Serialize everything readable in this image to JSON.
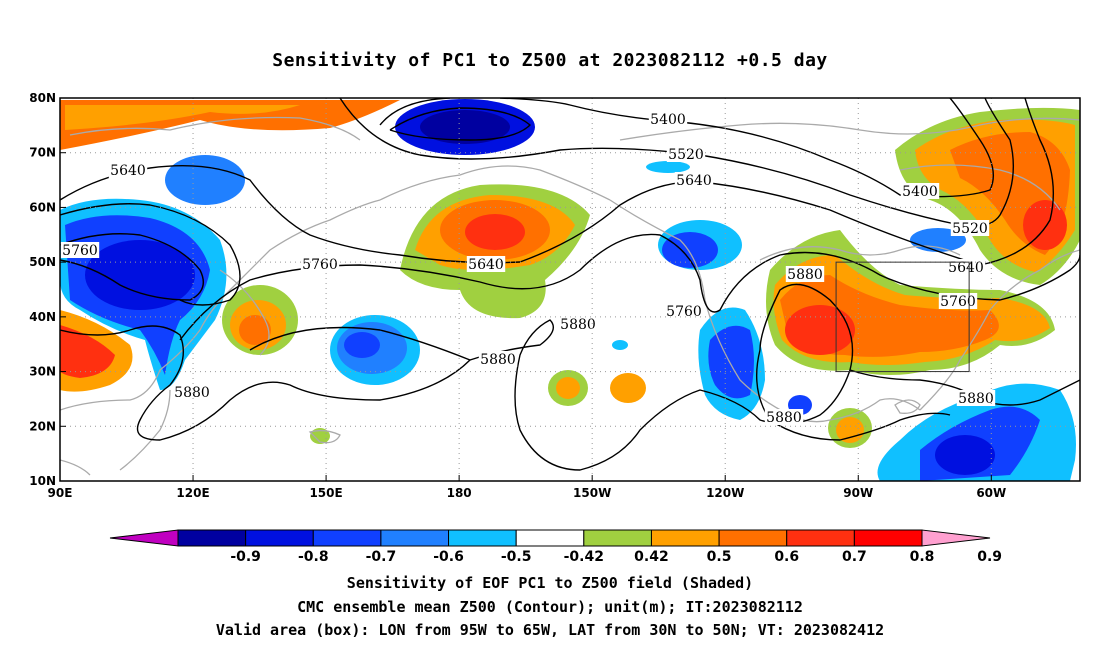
{
  "title": "Sensitivity of PC1 to Z500 at 2023082112 +0.5 day",
  "map": {
    "lat_labels": [
      "80N",
      "70N",
      "60N",
      "50N",
      "40N",
      "30N",
      "20N",
      "10N"
    ],
    "lon_labels": [
      "90E",
      "120E",
      "150E",
      "180",
      "150W",
      "120W",
      "90W",
      "60W"
    ],
    "lat_values": [
      80,
      70,
      60,
      50,
      40,
      30,
      20,
      10
    ],
    "lon_values": [
      90,
      120,
      150,
      180,
      210,
      240,
      270,
      300
    ],
    "lon_range": [
      90,
      320
    ],
    "lat_range": [
      10,
      80
    ],
    "grid": "dotted",
    "coastline_color": "#aaaaaa",
    "valid_box": {
      "lon": [
        265,
        295
      ],
      "lat": [
        30,
        50
      ]
    },
    "contours": [
      {
        "level": "5400",
        "labels": [
          "5400",
          "5400"
        ]
      },
      {
        "level": "5520",
        "labels": [
          "5520",
          "5520"
        ]
      },
      {
        "level": "5640",
        "labels": [
          "5640",
          "5640",
          "5640",
          "5640"
        ]
      },
      {
        "level": "5760",
        "labels": [
          "5760",
          "5760",
          "5760",
          "5760"
        ]
      },
      {
        "level": "5880",
        "labels": [
          "5880",
          "5880",
          "5880",
          "5880",
          "5880",
          "5880"
        ]
      }
    ]
  },
  "colorbar": {
    "labels": [
      "-0.9",
      "-0.8",
      "-0.7",
      "-0.6",
      "-0.5",
      "-0.42",
      "0.42",
      "0.5",
      "0.6",
      "0.7",
      "0.8",
      "0.9"
    ],
    "colors": [
      "#c000c0",
      "#0000a0",
      "#0010e0",
      "#1040ff",
      "#2080ff",
      "#10c0ff",
      "#ffffff",
      "#a0d040",
      "#ffa000",
      "#ff7000",
      "#ff3010",
      "#ff0000",
      "#ffa0d0"
    ]
  },
  "captions": [
    "Sensitivity of EOF PC1 to Z500 field (Shaded)",
    "CMC ensemble mean Z500 (Contour); unit(m); IT:2023082112",
    "Valid area (box): LON from 95W to 65W, LAT from 30N to 50N; VT: 2023082412"
  ]
}
